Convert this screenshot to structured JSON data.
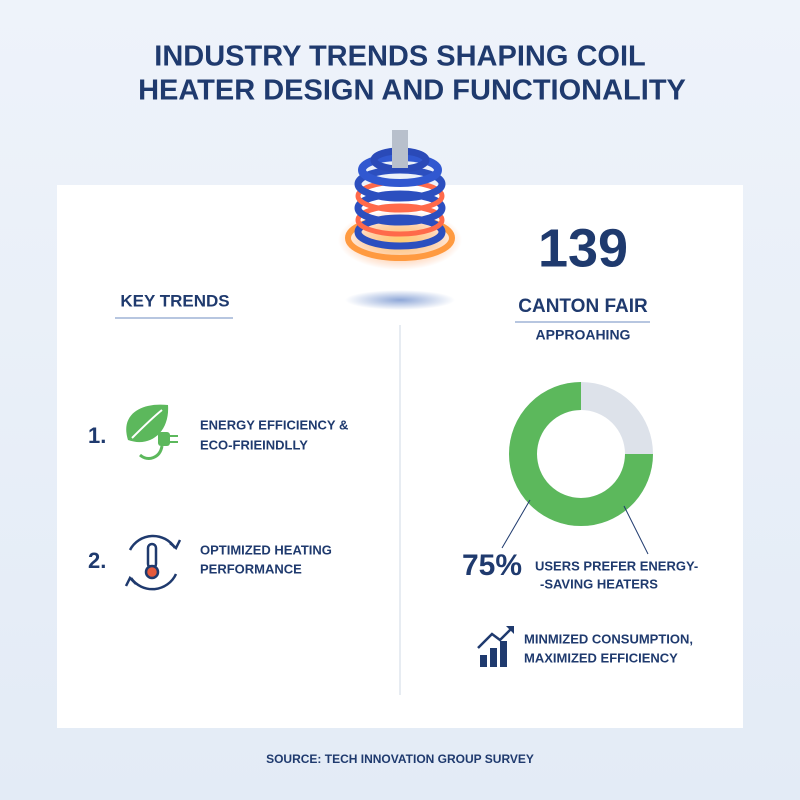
{
  "header": {
    "title_line1": "INDUSTRY TRENDS SHAPING COIL",
    "title_line2": "HEATER DESIGN AND FUNCTIONALITY"
  },
  "key_trends": {
    "heading": "KEY TRENDS",
    "items": [
      {
        "number": "1.",
        "line1": "ENERGY EFFICIENCY &",
        "line2": "ECO-FRIEINDLLY"
      },
      {
        "number": "2.",
        "line1": "OPTIMIZED HEATING",
        "line2": "PERFORMANCE"
      }
    ]
  },
  "event": {
    "number": 139,
    "name": "CANTON FAIR",
    "status": "APPROAHING"
  },
  "donut": {
    "value": 75,
    "value_label": "75%",
    "color": "#5cb85c",
    "line1": "USERS PREFER ENERGY-",
    "line2": "-SAVING HEATERS"
  },
  "highlight": {
    "line1": "MINMIZED CONSUMPTION,",
    "line2": "MAXIMIZED EFFICIENCY"
  },
  "footer": {
    "source": "SOURCE: TECH INNOVATION GROUP SURVEY"
  }
}
